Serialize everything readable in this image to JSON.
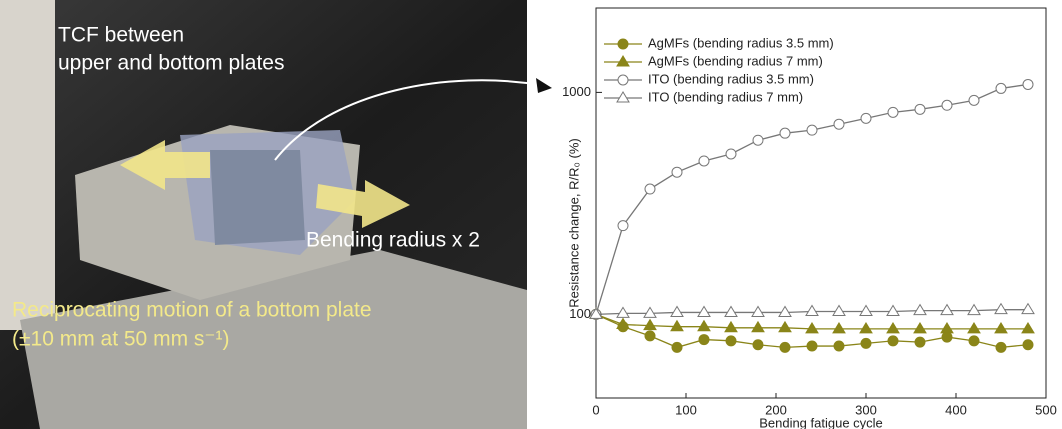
{
  "photo": {
    "label_1": "TCF between",
    "label_2": "upper and bottom plates",
    "label_3": "Bending radius x 2",
    "label_4": "Reciprocating motion of a bottom plate",
    "label_5": "(±10 mm at 50 mm s⁻¹)"
  },
  "chart_data": {
    "type": "line",
    "xlabel": "Bending fatigue cycle",
    "ylabel": "Resistance change, R/R₀ (%)",
    "x": [
      0,
      30,
      60,
      90,
      120,
      150,
      180,
      210,
      240,
      270,
      300,
      330,
      360,
      390,
      420,
      450,
      480
    ],
    "xlim": [
      0,
      500
    ],
    "xticks": [
      0,
      100,
      200,
      300,
      400,
      500
    ],
    "ylim": [
      42,
      2400
    ],
    "yticks": [
      100,
      1000
    ],
    "log_y": true,
    "legend": "upper left",
    "series": [
      {
        "name": "AgMFs (bending radius 3.5 mm)",
        "color": "#8a8519",
        "marker": "circle",
        "filled": true,
        "values": [
          100,
          88,
          80,
          71,
          77,
          76,
          73,
          71,
          72,
          72,
          74,
          76,
          75,
          79,
          76,
          71,
          73
        ]
      },
      {
        "name": "AgMFs (bending radius 7 mm)",
        "color": "#8a8519",
        "marker": "triangle",
        "filled": true,
        "values": [
          100,
          90,
          89,
          88,
          88,
          87,
          87,
          87,
          86,
          86,
          86,
          86,
          86,
          86,
          86,
          86,
          86
        ]
      },
      {
        "name": "ITO (bending radius 3.5 mm)",
        "color": "#777777",
        "marker": "circle",
        "filled": false,
        "values": [
          100,
          251,
          367,
          437,
          491,
          528,
          609,
          655,
          676,
          719,
          764,
          813,
          839,
          875,
          921,
          1042,
          1086
        ]
      },
      {
        "name": "ITO (bending radius 7 mm)",
        "color": "#777777",
        "marker": "triangle",
        "filled": false,
        "values": [
          100,
          101,
          101,
          102,
          102,
          102,
          102,
          102,
          103,
          103,
          103,
          103,
          104,
          104,
          104,
          105,
          105
        ]
      }
    ]
  }
}
